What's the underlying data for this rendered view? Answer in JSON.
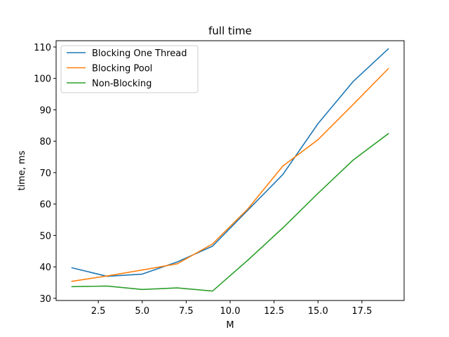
{
  "chart_data": {
    "type": "line",
    "title": "full time",
    "xlabel": "M",
    "ylabel": "time, ms",
    "xlim": [
      0.1,
      19.9
    ],
    "ylim": [
      29.3,
      112.0
    ],
    "x_ticks": [
      2.5,
      5.0,
      7.5,
      10.0,
      12.5,
      15.0,
      17.5
    ],
    "x_tick_labels": [
      "2.5",
      "5.0",
      "7.5",
      "10.0",
      "12.5",
      "15.0",
      "17.5"
    ],
    "y_ticks": [
      30,
      40,
      50,
      60,
      70,
      80,
      90,
      100,
      110
    ],
    "y_tick_labels": [
      "30",
      "40",
      "50",
      "60",
      "70",
      "80",
      "90",
      "100",
      "110"
    ],
    "grid": false,
    "legend_position": "upper-left",
    "x": [
      1,
      3,
      5,
      7,
      9,
      11,
      13,
      15,
      17,
      19
    ],
    "series": [
      {
        "name": "Blocking One Thread",
        "color": "#1f77b4",
        "values": [
          39.7,
          37.0,
          37.7,
          41.6,
          46.6,
          58.0,
          69.4,
          85.6,
          99.0,
          109.4
        ]
      },
      {
        "name": "Blocking Pool",
        "color": "#ff7f0e",
        "values": [
          35.4,
          37.1,
          39.0,
          41.0,
          47.3,
          58.4,
          72.1,
          80.5,
          91.7,
          103.1
        ]
      },
      {
        "name": "Non-Blocking",
        "color": "#2ca02c",
        "values": [
          33.7,
          33.9,
          32.8,
          33.3,
          32.3,
          42.1,
          52.4,
          63.4,
          74.0,
          82.4
        ]
      }
    ]
  }
}
